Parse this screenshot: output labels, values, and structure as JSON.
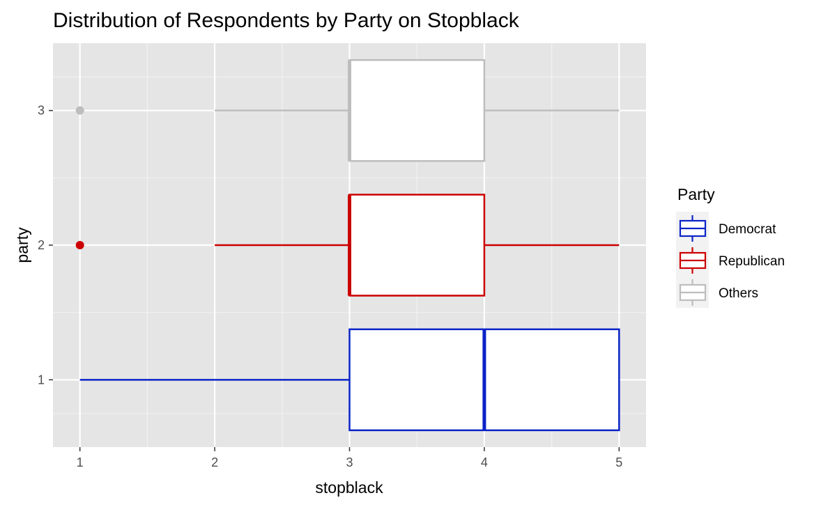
{
  "chart_data": {
    "type": "boxplot",
    "orientation": "horizontal",
    "title": "Distribution of Respondents by Party on Stopblack",
    "xlabel": "stopblack",
    "ylabel": "party",
    "xlim": [
      0.8,
      5.2
    ],
    "ylim": [
      0.5,
      3.5
    ],
    "x_ticks": [
      1,
      2,
      3,
      4,
      5
    ],
    "y_ticks": [
      1,
      2,
      3
    ],
    "grid": true,
    "legend": {
      "title": "Party",
      "position": "right",
      "entries": [
        {
          "label": "Democrat",
          "color": "#0a23c8"
        },
        {
          "label": "Republican",
          "color": "#cc0000"
        },
        {
          "label": "Others",
          "color": "#bdbdbd"
        }
      ]
    },
    "series": [
      {
        "name": "Democrat",
        "y": 1,
        "color": "#0a23c8",
        "whisker_low": 1,
        "q1": 3,
        "median": 4,
        "q3": 5,
        "whisker_high": 5,
        "outliers": []
      },
      {
        "name": "Republican",
        "y": 2,
        "color": "#cc0000",
        "whisker_low": 2,
        "q1": 3,
        "median": 3,
        "q3": 4,
        "whisker_high": 5,
        "outliers": [
          1
        ]
      },
      {
        "name": "Others",
        "y": 3,
        "color": "#bdbdbd",
        "whisker_low": 2,
        "q1": 3,
        "median": 3,
        "q3": 4,
        "whisker_high": 5,
        "outliers": [
          1
        ]
      }
    ]
  }
}
